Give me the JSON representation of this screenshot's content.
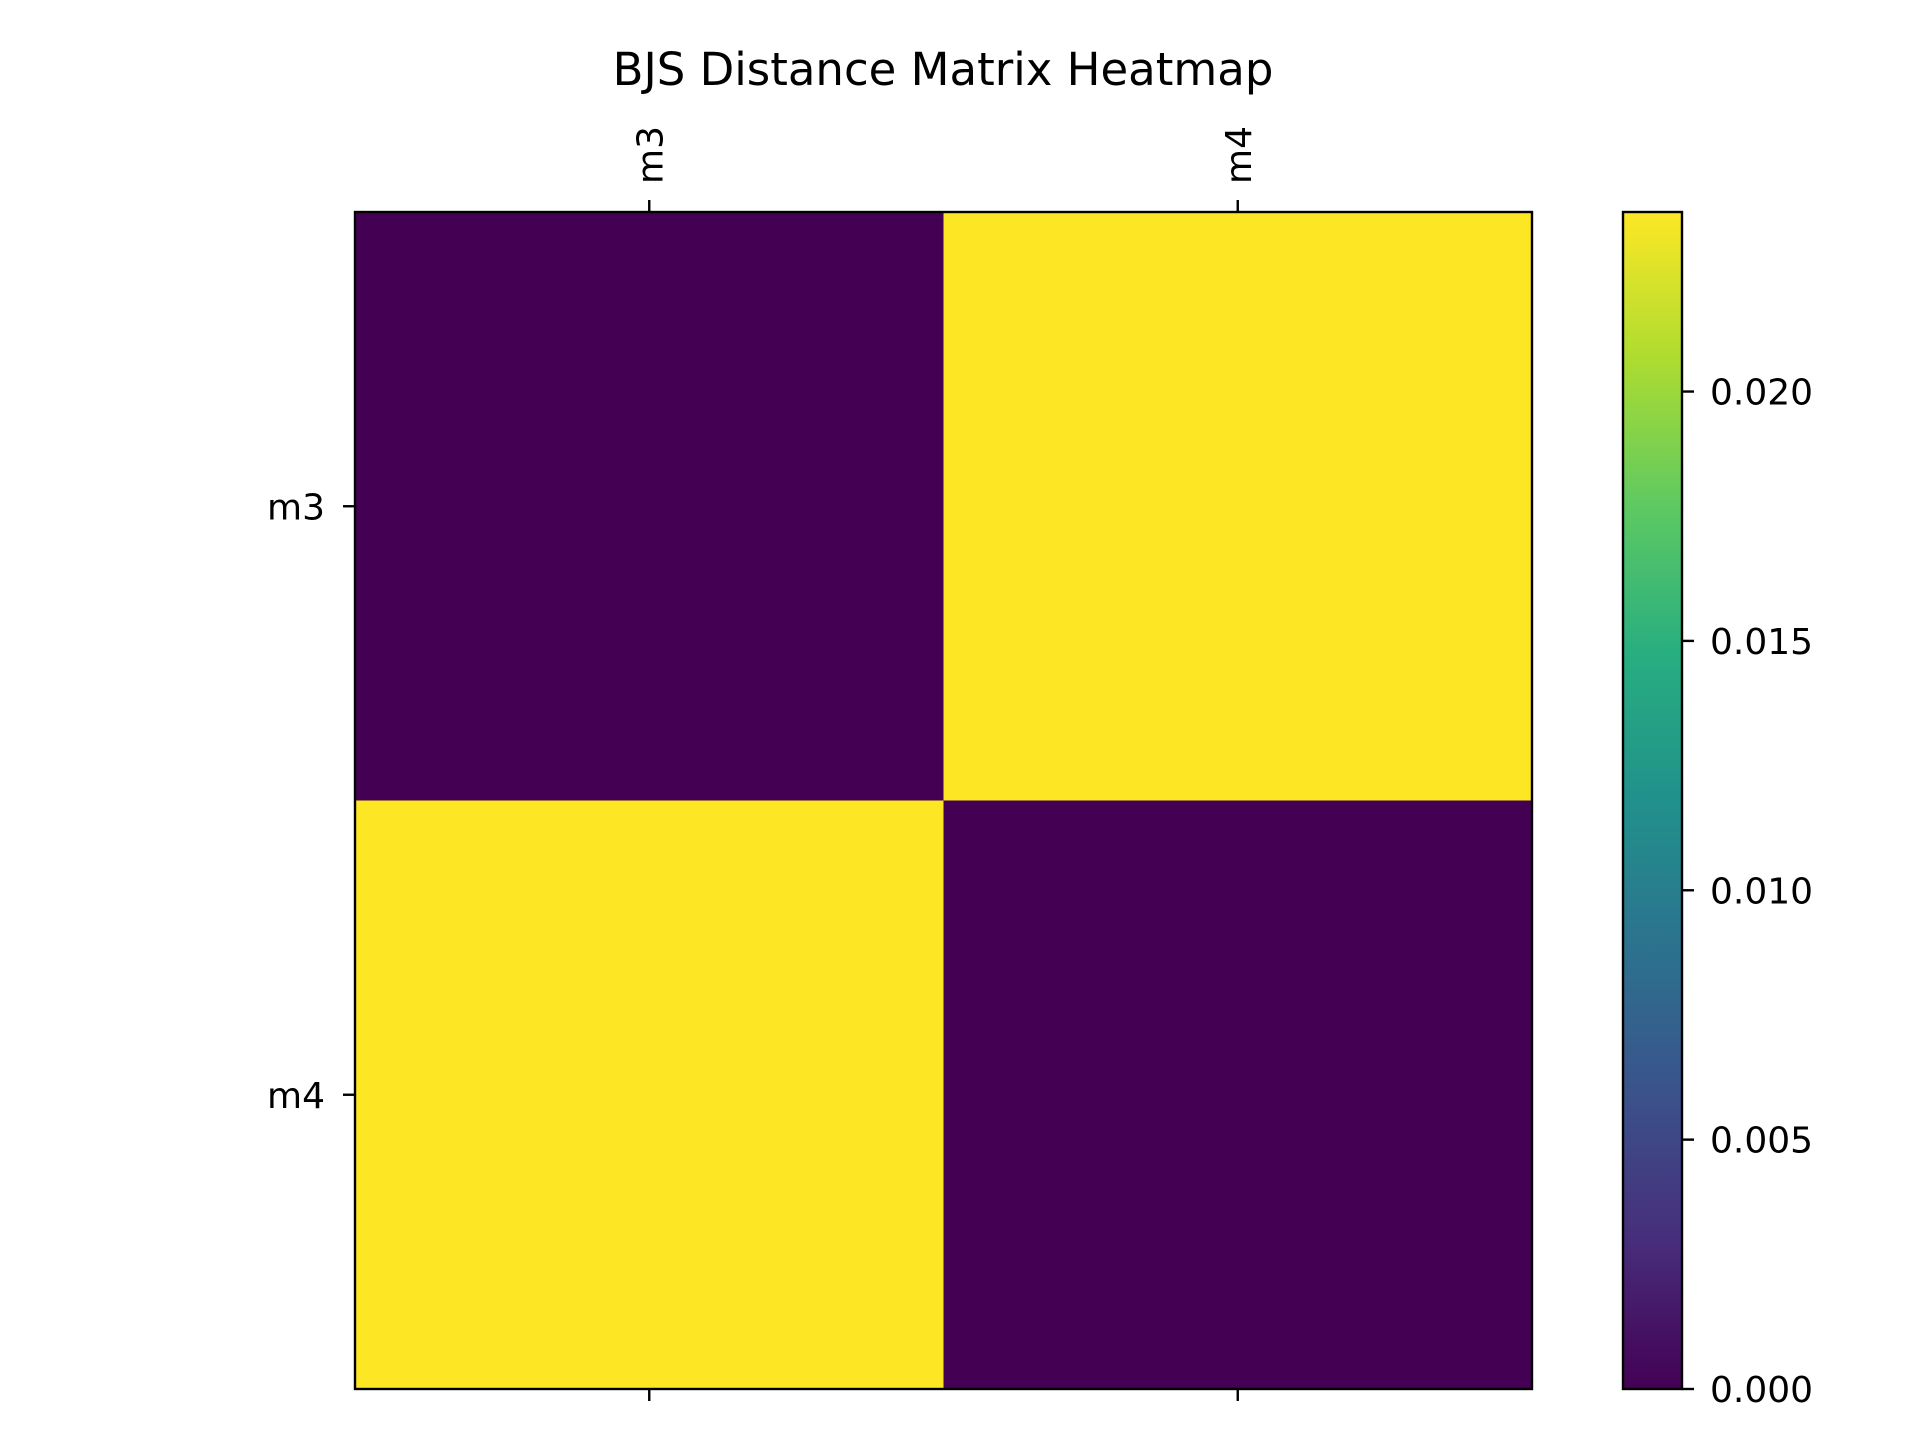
{
  "chart_data": {
    "type": "heatmap",
    "title": "BJS Distance Matrix Heatmap",
    "xlabel": "",
    "ylabel": "",
    "x_categories": [
      "m3",
      "m4"
    ],
    "y_categories": [
      "m3",
      "m4"
    ],
    "matrix": [
      [
        0.0,
        0.0236
      ],
      [
        0.0236,
        0.0
      ]
    ],
    "x_tick_labels_position": "top",
    "colormap": "viridis",
    "colorbar": {
      "range": [
        0.0,
        0.0236
      ],
      "ticks": [
        0.0,
        0.005,
        0.01,
        0.015,
        0.02
      ],
      "tick_labels": [
        "0.000",
        "0.005",
        "0.010",
        "0.015",
        "0.020"
      ],
      "placement": "right"
    },
    "grid": false,
    "colors": {
      "low": "#440154",
      "high": "#fde725"
    }
  }
}
